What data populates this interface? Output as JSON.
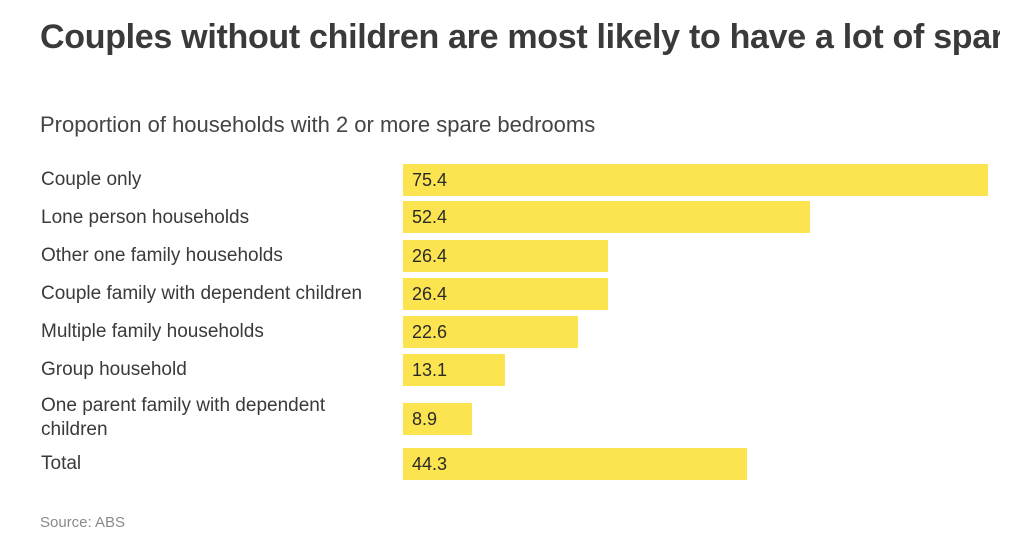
{
  "colors": {
    "bar": "#fbe44f",
    "title": "#3a3a3a",
    "source": "#8a8a8a"
  },
  "chart_data": {
    "type": "bar",
    "orientation": "horizontal",
    "title": "Couples without children are most likely to have a lot of spare bedrooms",
    "subtitle": "Proportion of households with 2 or more spare bedrooms",
    "categories": [
      "Couple only",
      "Lone person households",
      "Other one family households",
      "Couple family with dependent children",
      "Multiple family households",
      "Group household",
      "One parent family with dependent children",
      "Total"
    ],
    "values": [
      75.4,
      52.4,
      26.4,
      26.4,
      22.6,
      13.1,
      8.9,
      44.3
    ],
    "value_labels": [
      "75.4",
      "52.4",
      "26.4",
      "26.4",
      "22.6",
      "13.1",
      "8.9",
      "44.3"
    ],
    "xlim": [
      0,
      75.4
    ],
    "grid": false,
    "legend": "none",
    "source": "Source: ABS"
  }
}
